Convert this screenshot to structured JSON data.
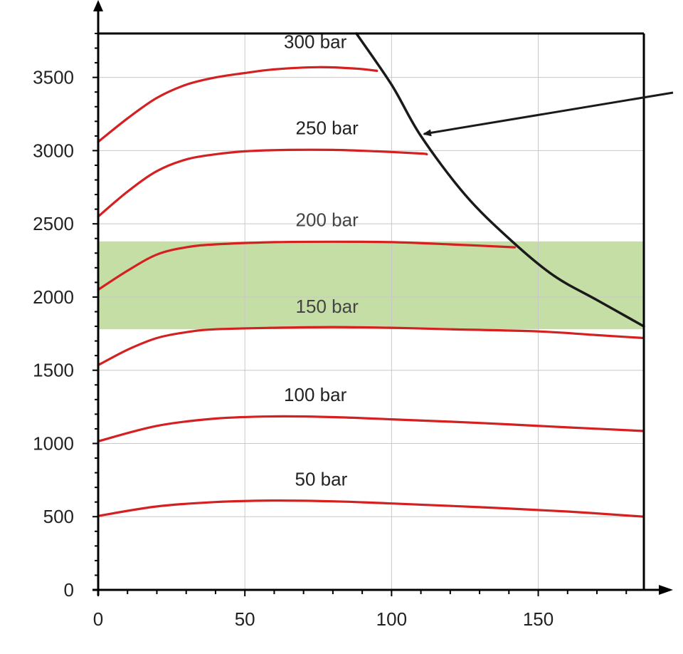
{
  "chart_data": {
    "type": "line",
    "title": "",
    "xlabel": "",
    "ylabel": "",
    "xlim": [
      0,
      186
    ],
    "ylim": [
      0,
      3800
    ],
    "x_ticks": [
      0,
      50,
      100,
      150
    ],
    "y_ticks": [
      0,
      500,
      1000,
      1500,
      2000,
      2500,
      3000,
      3500
    ],
    "grid": true,
    "legend": "none",
    "highlight_band": {
      "y_range": [
        1780,
        2380
      ],
      "color": "#c5dea5"
    },
    "boundary_curve": {
      "color": "#1a1a1a",
      "points": [
        [
          88,
          3800
        ],
        [
          100,
          3450
        ],
        [
          110,
          3100
        ],
        [
          125,
          2700
        ],
        [
          140,
          2400
        ],
        [
          155,
          2150
        ],
        [
          170,
          1980
        ],
        [
          186,
          1800
        ]
      ]
    },
    "arrow": {
      "color": "#1a1a1a"
    },
    "series": [
      {
        "label": "300 bar",
        "color": "#d42020",
        "points": [
          [
            0,
            3060
          ],
          [
            10,
            3220
          ],
          [
            20,
            3360
          ],
          [
            30,
            3450
          ],
          [
            40,
            3500
          ],
          [
            50,
            3530
          ],
          [
            60,
            3555
          ],
          [
            75,
            3570
          ],
          [
            88,
            3560
          ],
          [
            95,
            3545
          ]
        ]
      },
      {
        "label": "250 bar",
        "color": "#d42020",
        "points": [
          [
            0,
            2550
          ],
          [
            10,
            2720
          ],
          [
            20,
            2860
          ],
          [
            30,
            2940
          ],
          [
            40,
            2975
          ],
          [
            50,
            2995
          ],
          [
            65,
            3005
          ],
          [
            80,
            3005
          ],
          [
            95,
            2995
          ],
          [
            110,
            2980
          ],
          [
            112,
            2975
          ]
        ]
      },
      {
        "label": "200 bar",
        "color": "#d42020",
        "points": [
          [
            0,
            2050
          ],
          [
            10,
            2180
          ],
          [
            20,
            2290
          ],
          [
            30,
            2340
          ],
          [
            40,
            2360
          ],
          [
            60,
            2375
          ],
          [
            80,
            2378
          ],
          [
            100,
            2375
          ],
          [
            120,
            2360
          ],
          [
            142,
            2340
          ]
        ]
      },
      {
        "label": "150 bar",
        "color": "#d42020",
        "points": [
          [
            0,
            1535
          ],
          [
            10,
            1640
          ],
          [
            20,
            1720
          ],
          [
            30,
            1760
          ],
          [
            40,
            1780
          ],
          [
            60,
            1790
          ],
          [
            80,
            1795
          ],
          [
            100,
            1790
          ],
          [
            120,
            1780
          ],
          [
            150,
            1765
          ],
          [
            170,
            1740
          ],
          [
            186,
            1720
          ]
        ]
      },
      {
        "label": "100 bar",
        "color": "#d42020",
        "points": [
          [
            0,
            1015
          ],
          [
            20,
            1120
          ],
          [
            40,
            1170
          ],
          [
            60,
            1185
          ],
          [
            80,
            1180
          ],
          [
            100,
            1165
          ],
          [
            130,
            1140
          ],
          [
            160,
            1110
          ],
          [
            186,
            1085
          ]
        ]
      },
      {
        "label": "50 bar",
        "color": "#d42020",
        "points": [
          [
            0,
            505
          ],
          [
            20,
            570
          ],
          [
            40,
            600
          ],
          [
            60,
            610
          ],
          [
            80,
            605
          ],
          [
            100,
            590
          ],
          [
            130,
            565
          ],
          [
            160,
            535
          ],
          [
            186,
            500
          ]
        ]
      }
    ]
  }
}
